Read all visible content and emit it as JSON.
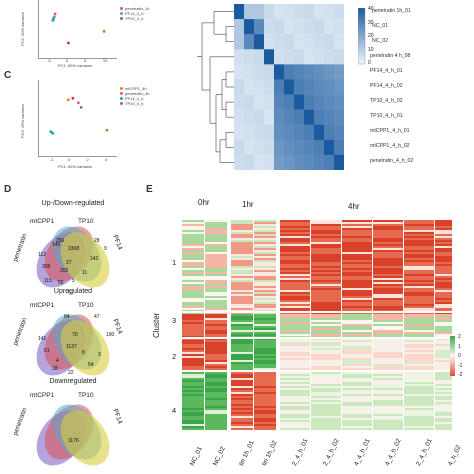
{
  "panels": {
    "c": "C",
    "d": "D",
    "e": "E"
  },
  "pca_top": {
    "xlabel": "PC1: 65% variance",
    "ylabel": "PC2: 30% variance",
    "x_ticks": [
      "-5",
      "0",
      "5",
      "10"
    ],
    "legend": [
      {
        "label": "penetratin_1h",
        "color": "#e8509a"
      },
      {
        "label": "PF14_4_h",
        "color": "#7a8fd0"
      },
      {
        "label": "TP10_4_h",
        "color": "#9b59b6"
      }
    ],
    "points": [
      {
        "x": -3.4,
        "y": 1.6,
        "color": "#e8509a"
      },
      {
        "x": -3.8,
        "y": 0.8,
        "color": "#1aa6a6"
      },
      {
        "x": -4.0,
        "y": 0.5,
        "color": "#1aa6a6"
      },
      {
        "x": -3.6,
        "y": 1.1,
        "color": "#7a8fd0"
      },
      {
        "x": 9.8,
        "y": -1.4,
        "color": "#8a9a3a"
      },
      {
        "x": 0.2,
        "y": -3.4,
        "color": "#c0392b"
      }
    ],
    "xlim": [
      -8,
      13
    ],
    "ylim": [
      -6,
      4
    ]
  },
  "pca_c": {
    "xlabel": "PC1: 65% variance",
    "ylabel": "PC2: 29% variance",
    "x_ticks": [
      "-2",
      "0",
      "2",
      "4"
    ],
    "legend": [
      {
        "label": "mtCPP1_4h",
        "color": "#e67e22"
      },
      {
        "label": "penetratin_4h",
        "color": "#e8509a"
      },
      {
        "label": "PF14_4_h",
        "color": "#1aa6a6"
      },
      {
        "label": "TP10_4_h",
        "color": "#9b59b6"
      }
    ],
    "points": [
      {
        "x": -0.2,
        "y": 1.2,
        "color": "#e67e22"
      },
      {
        "x": 0.3,
        "y": 1.3,
        "color": "#c0392b"
      },
      {
        "x": 0.9,
        "y": 1.0,
        "color": "#e8509a"
      },
      {
        "x": 1.2,
        "y": 0.7,
        "color": "#9b59b6"
      },
      {
        "x": -2.1,
        "y": -0.9,
        "color": "#1aa6a6"
      },
      {
        "x": -1.9,
        "y": -1.0,
        "color": "#1aa6a6"
      },
      {
        "x": 4.0,
        "y": -0.8,
        "color": "#8a9a3a"
      }
    ],
    "xlim": [
      -3.5,
      5
    ],
    "ylim": [
      -2.5,
      2.5
    ]
  },
  "heatmap_corr": {
    "rows": [
      "penetratin 1h_01",
      "NC_01",
      "NC_02",
      "penetratin 4 h_08",
      "PF14_4_h_01",
      "PF14_4_h_02",
      "TP10_4_h_02",
      "TP10_4_h_01",
      "mtCPP1_4_h_01",
      "mtCPP1_4_h_02",
      "penetratin_4_h_02"
    ],
    "scale_ticks": [
      "40",
      "30",
      "20",
      "10",
      "0"
    ],
    "colors": {
      "low": "#f0f6fc",
      "high": "#1a5a9e"
    }
  },
  "venn": [
    {
      "title": "Up-/Down-regulated",
      "set_labels": [
        "penetratin",
        "mtCPP1",
        "TP10",
        "PF14"
      ],
      "values": [
        "145",
        "112",
        "256",
        "28",
        "27",
        "305",
        "2308",
        "202",
        "142",
        "9",
        "115",
        "55",
        "5",
        "11",
        "61"
      ]
    },
    {
      "title": "Upregulated",
      "set_labels": [
        "penetratin",
        "mtCPP1",
        "TP10",
        "PF14"
      ],
      "values": [
        "84",
        "47",
        "141",
        "70",
        "190",
        "1137",
        "51",
        "4",
        "8",
        "3",
        "18",
        "22",
        "54"
      ]
    },
    {
      "title": "Downregulated",
      "set_labels": [
        "penetratin",
        "mtCPP1",
        "TP10",
        "PF14"
      ],
      "values": [
        "",
        "",
        "",
        "",
        "1176",
        "",
        "",
        ""
      ]
    }
  ],
  "heatmap_e": {
    "time_labels": [
      "0hr",
      "1hr",
      "4hr"
    ],
    "y_title": "Cluster",
    "clusters": [
      "1",
      "3",
      "2",
      "4"
    ],
    "legend_ticks": [
      "2",
      "1",
      "0",
      "-1",
      "-2"
    ],
    "colors": {
      "pos": "#3aa54a",
      "neg": "#e34a33",
      "mid": "#fbf6f0"
    },
    "col_labels": [
      "NC_01",
      "NC_02",
      "tin 1h_01",
      "tin 1h_02",
      "2_4_h_01",
      "2_4_h_02",
      "4_4_h_01",
      "4_4_h_02",
      "2_4_h_01",
      "4_h_02"
    ]
  }
}
